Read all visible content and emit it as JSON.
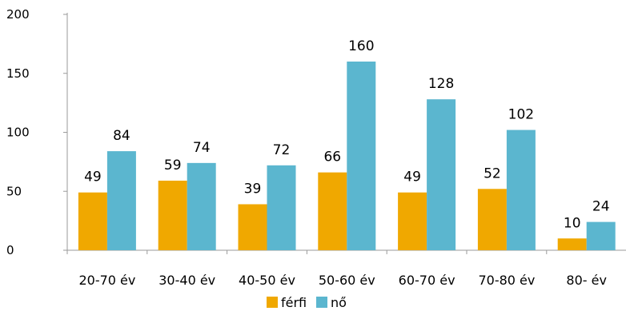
{
  "chart_data": {
    "type": "bar",
    "categories": [
      "20-70 év",
      "30-40 év",
      "40-50 év",
      "50-60 év",
      "60-70 év",
      "70-80 év",
      "80- év"
    ],
    "series": [
      {
        "name": "férfi",
        "values": [
          49,
          59,
          39,
          66,
          49,
          52,
          10
        ],
        "color": "#F0A800"
      },
      {
        "name": "nő",
        "values": [
          84,
          74,
          72,
          160,
          128,
          102,
          24
        ],
        "color": "#5BB6CF"
      }
    ],
    "ylim": [
      0,
      200
    ],
    "yticks": [
      "0",
      "50",
      "100",
      "150",
      "200"
    ],
    "grid": false,
    "legend_position": "bottom",
    "data_labels": true
  }
}
